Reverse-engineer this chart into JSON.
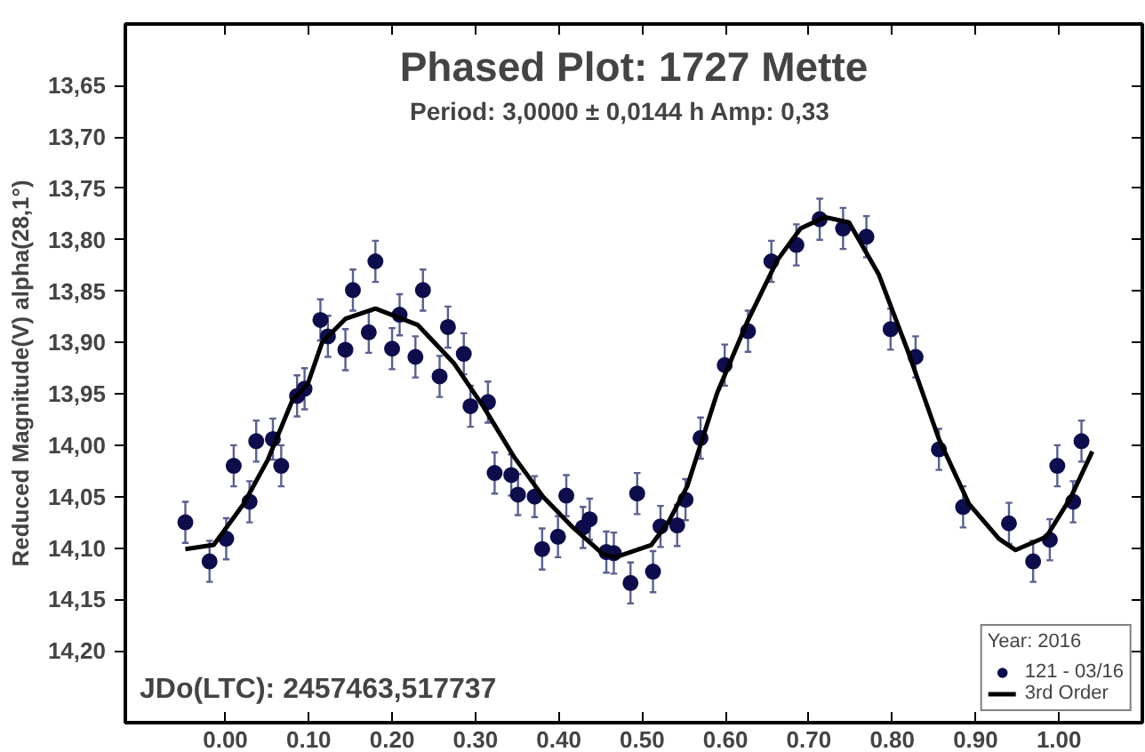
{
  "chart_data": {
    "type": "scatter",
    "title": "Phased Plot: 1727 Mette",
    "subtitle": "Period: 3,0000 ± 0,0144 h     Amp: 0,33",
    "ylabel": "Reduced Magnitude(V) alpha(28,1°)",
    "legend_title": "Year: 2016",
    "legend": "bottom right",
    "grid": false,
    "annotations": [
      "JDo(LTC): 2457463,517737"
    ],
    "xlim": [
      -0.12,
      1.1
    ],
    "ylim": [
      14.27,
      13.59
    ],
    "xticks": [
      {
        "value": 0,
        "label": "0.00"
      },
      {
        "value": 0.1,
        "label": "0.10"
      },
      {
        "value": 0.2,
        "label": "0.20"
      },
      {
        "value": 0.3,
        "label": "0.30"
      },
      {
        "value": 0.4,
        "label": "0.40"
      },
      {
        "value": 0.5,
        "label": "0.50"
      },
      {
        "value": 0.6,
        "label": "0.60"
      },
      {
        "value": 0.7,
        "label": "0.70"
      },
      {
        "value": 0.8,
        "label": "0.80"
      },
      {
        "value": 0.9,
        "label": "0.90"
      },
      {
        "value": 1.0,
        "label": "1.00"
      }
    ],
    "yticks": [
      {
        "value": 13.65,
        "label": "13,65"
      },
      {
        "value": 13.7,
        "label": "13,70"
      },
      {
        "value": 13.75,
        "label": "13,75"
      },
      {
        "value": 13.8,
        "label": "13,80"
      },
      {
        "value": 13.85,
        "label": "13,85"
      },
      {
        "value": 13.9,
        "label": "13,90"
      },
      {
        "value": 13.95,
        "label": "13,95"
      },
      {
        "value": 14.0,
        "label": "14,00"
      },
      {
        "value": 14.05,
        "label": "14,05"
      },
      {
        "value": 14.1,
        "label": "14,10"
      },
      {
        "value": 14.15,
        "label": "14,15"
      },
      {
        "value": 14.2,
        "label": "14,20"
      }
    ],
    "series": [
      {
        "name": "121 - 03/16",
        "marker": "circle",
        "color": "#0d0d4d",
        "x": [
          -0.048,
          -0.019,
          0.001,
          0.01,
          0.029,
          0.037,
          0.057,
          0.067,
          0.086,
          0.095,
          0.114,
          0.123,
          0.144,
          0.153,
          0.172,
          0.18,
          0.2,
          0.209,
          0.228,
          0.237,
          0.257,
          0.267,
          0.286,
          0.294,
          0.315,
          0.323,
          0.343,
          0.351,
          0.371,
          0.38,
          0.399,
          0.409,
          0.429,
          0.437,
          0.457,
          0.466,
          0.486,
          0.494,
          0.513,
          0.522,
          0.542,
          0.552,
          0.57,
          0.599,
          0.627,
          0.655,
          0.685,
          0.713,
          0.741,
          0.769,
          0.798,
          0.828,
          0.856,
          0.885,
          0.94,
          0.969,
          0.989,
          0.998,
          1.017,
          1.027
        ],
        "values": [
          14.075,
          14.113,
          14.091,
          14.02,
          14.055,
          13.996,
          13.994,
          14.02,
          13.952,
          13.945,
          13.878,
          13.894,
          13.907,
          13.849,
          13.89,
          13.821,
          13.906,
          13.873,
          13.914,
          13.849,
          13.933,
          13.885,
          13.911,
          13.962,
          13.958,
          14.027,
          14.029,
          14.048,
          14.05,
          14.101,
          14.089,
          14.049,
          14.08,
          14.072,
          14.104,
          14.105,
          14.134,
          14.047,
          14.123,
          14.079,
          14.078,
          14.053,
          13.993,
          13.922,
          13.889,
          13.821,
          13.805,
          13.78,
          13.789,
          13.797,
          13.887,
          13.914,
          14.004,
          14.06,
          14.076,
          14.113,
          14.092,
          14.02,
          14.055,
          13.996
        ],
        "errors": [
          0.02,
          0.02,
          0.02,
          0.02,
          0.02,
          0.02,
          0.02,
          0.02,
          0.02,
          0.02,
          0.02,
          0.02,
          0.02,
          0.02,
          0.02,
          0.02,
          0.02,
          0.02,
          0.02,
          0.02,
          0.02,
          0.02,
          0.02,
          0.02,
          0.02,
          0.02,
          0.02,
          0.02,
          0.02,
          0.02,
          0.02,
          0.02,
          0.02,
          0.02,
          0.02,
          0.02,
          0.02,
          0.02,
          0.02,
          0.02,
          0.02,
          0.02,
          0.02,
          0.02,
          0.02,
          0.02,
          0.02,
          0.02,
          0.02,
          0.02,
          0.02,
          0.02,
          0.02,
          0.02,
          0.02,
          0.02,
          0.02,
          0.02,
          0.02,
          0.02
        ]
      },
      {
        "name": "3rd Order",
        "type": "line",
        "color": "#000000",
        "line_style": "solid",
        "marker": "none",
        "x": [
          -0.048,
          -0.014,
          0.022,
          0.051,
          0.08,
          0.099,
          0.116,
          0.144,
          0.18,
          0.231,
          0.274,
          0.31,
          0.346,
          0.382,
          0.417,
          0.453,
          0.468,
          0.511,
          0.532,
          0.554,
          0.59,
          0.626,
          0.662,
          0.69,
          0.719,
          0.748,
          0.784,
          0.819,
          0.856,
          0.892,
          0.928,
          0.948,
          0.985,
          1.014,
          1.04
        ],
        "values": [
          14.101,
          14.097,
          14.057,
          14.014,
          13.957,
          13.94,
          13.9,
          13.877,
          13.867,
          13.883,
          13.92,
          13.963,
          14.011,
          14.051,
          14.08,
          14.106,
          14.109,
          14.097,
          14.074,
          14.04,
          13.949,
          13.88,
          13.82,
          13.789,
          13.778,
          13.783,
          13.834,
          13.909,
          13.994,
          14.057,
          14.091,
          14.102,
          14.089,
          14.051,
          14.006
        ]
      }
    ]
  }
}
